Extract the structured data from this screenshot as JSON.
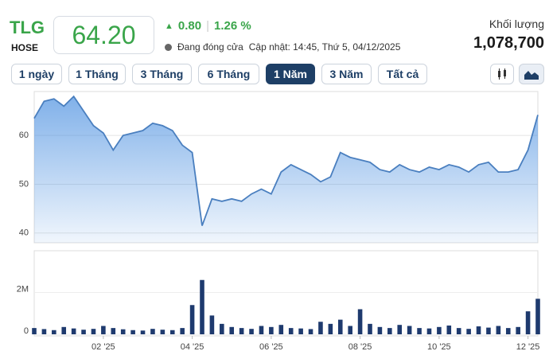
{
  "header": {
    "symbol": "TLG",
    "exchange": "HOSE",
    "price": "64.20",
    "change": "0.80",
    "change_pct": "1.26 %",
    "status": "Đang đóng cửa",
    "updated": "Cập nhật: 14:45, Thứ 5, 04/12/2025",
    "volume_label": "Khối lượng",
    "volume": "1,078,700"
  },
  "buttons": [
    "1 ngày",
    "1 Tháng",
    "3 Tháng",
    "6 Tháng",
    "1 Năm",
    "3 Năm",
    "Tất cả"
  ],
  "chart_data": [
    {
      "type": "area",
      "color": "#4a7fbf",
      "categories": [
        null,
        null,
        null,
        null,
        null,
        null,
        null,
        "02 '25",
        null,
        null,
        null,
        null,
        null,
        null,
        null,
        null,
        "04 '25",
        null,
        null,
        null,
        null,
        null,
        null,
        null,
        "06 '25",
        null,
        null,
        null,
        null,
        null,
        null,
        null,
        null,
        "08 '25",
        null,
        null,
        null,
        null,
        null,
        null,
        null,
        "10 '25",
        null,
        null,
        null,
        null,
        null,
        null,
        null,
        null,
        "12 '25",
        null
      ],
      "values": [
        63.5,
        67,
        67.5,
        66,
        68,
        65,
        62,
        60.5,
        57,
        60,
        60.5,
        61,
        62.5,
        62,
        61,
        58,
        56.5,
        41.5,
        47,
        46.5,
        47,
        46.5,
        48,
        49,
        48,
        52.5,
        54,
        53,
        52,
        50.5,
        51.5,
        56.5,
        55.5,
        55,
        54.5,
        53,
        52.5,
        54,
        53,
        52.5,
        53.5,
        53,
        54,
        53.5,
        52.5,
        54,
        54.5,
        52.5,
        52.5,
        53,
        57,
        64.2
      ],
      "ylim": [
        38,
        69
      ],
      "yticks": [
        40,
        50,
        60
      ],
      "grid": true
    },
    {
      "type": "bar",
      "color": "#1e3a6e",
      "values": [
        300000,
        250000,
        200000,
        350000,
        280000,
        220000,
        260000,
        400000,
        300000,
        240000,
        200000,
        180000,
        260000,
        220000,
        200000,
        300000,
        1400000,
        2600000,
        900000,
        500000,
        350000,
        300000,
        260000,
        400000,
        350000,
        450000,
        300000,
        280000,
        250000,
        600000,
        500000,
        700000,
        400000,
        1200000,
        500000,
        350000,
        300000,
        450000,
        400000,
        300000,
        280000,
        350000,
        420000,
        300000,
        260000,
        380000,
        320000,
        400000,
        300000,
        350000,
        1100000,
        1700000
      ],
      "ylim": [
        0,
        4000000
      ],
      "yticks": [
        0,
        {
          "value": 2000000,
          "label": "2M"
        }
      ]
    }
  ]
}
